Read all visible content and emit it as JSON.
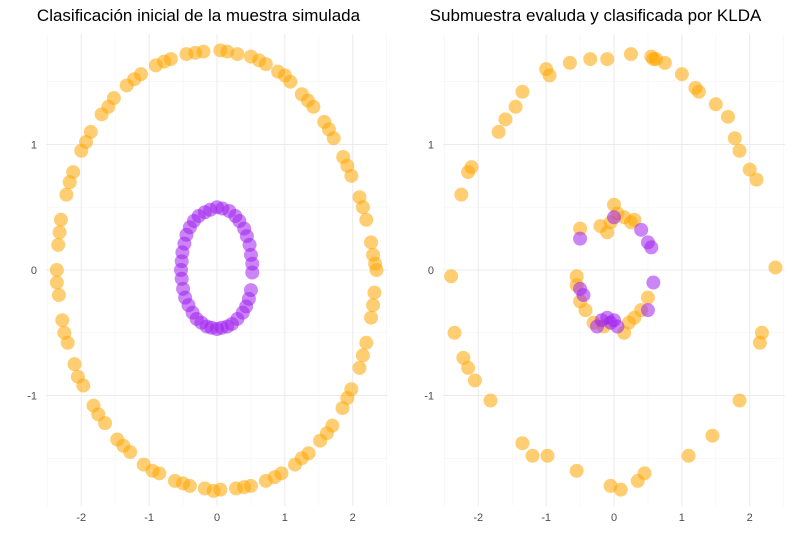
{
  "chart_data": [
    {
      "type": "scatter",
      "title": "Clasificación inicial de la muestra simulada",
      "xlabel": "",
      "ylabel": "",
      "xlim": [
        -2.52,
        2.52
      ],
      "ylim": [
        -1.88,
        1.88
      ],
      "xticks": [
        "-2",
        "-1",
        "0",
        "1",
        "2"
      ],
      "yticks": [
        "-1",
        "0",
        "1"
      ],
      "grid": true,
      "series": [
        {
          "color": "#FFA500",
          "points": [
            [
              0.05,
              1.75
            ],
            [
              0.3,
              1.72
            ],
            [
              0.5,
              1.7
            ],
            [
              0.72,
              1.64
            ],
            [
              0.9,
              1.58
            ],
            [
              1.08,
              1.5
            ],
            [
              1.25,
              1.4
            ],
            [
              1.42,
              1.3
            ],
            [
              1.58,
              1.18
            ],
            [
              1.72,
              1.05
            ],
            [
              1.86,
              0.9
            ],
            [
              1.98,
              0.75
            ],
            [
              2.1,
              0.58
            ],
            [
              2.2,
              0.4
            ],
            [
              2.27,
              0.22
            ],
            [
              2.33,
              0.05
            ],
            [
              2.35,
              0.0
            ],
            [
              2.32,
              -0.18
            ],
            [
              2.27,
              -0.38
            ],
            [
              2.2,
              -0.58
            ],
            [
              2.1,
              -0.78
            ],
            [
              1.98,
              -0.95
            ],
            [
              1.85,
              -1.1
            ],
            [
              1.7,
              -1.24
            ],
            [
              1.52,
              -1.36
            ],
            [
              1.35,
              -1.46
            ],
            [
              1.15,
              -1.55
            ],
            [
              0.95,
              -1.62
            ],
            [
              0.72,
              -1.68
            ],
            [
              0.5,
              -1.72
            ],
            [
              0.28,
              -1.74
            ],
            [
              0.05,
              -1.75
            ],
            [
              -0.18,
              -1.74
            ],
            [
              -0.4,
              -1.72
            ],
            [
              -0.62,
              -1.68
            ],
            [
              -0.85,
              -1.62
            ],
            [
              -1.08,
              -1.55
            ],
            [
              -1.28,
              -1.45
            ],
            [
              -1.47,
              -1.35
            ],
            [
              -1.65,
              -1.22
            ],
            [
              -1.82,
              -1.08
            ],
            [
              -1.97,
              -0.92
            ],
            [
              -2.1,
              -0.75
            ],
            [
              -2.2,
              -0.58
            ],
            [
              -2.28,
              -0.4
            ],
            [
              -2.33,
              -0.2
            ],
            [
              -2.36,
              0.0
            ],
            [
              -2.34,
              0.2
            ],
            [
              -2.3,
              0.4
            ],
            [
              -2.22,
              0.6
            ],
            [
              -2.12,
              0.78
            ],
            [
              -2.0,
              0.95
            ],
            [
              -1.86,
              1.1
            ],
            [
              -1.7,
              1.24
            ],
            [
              -1.52,
              1.37
            ],
            [
              -1.33,
              1.47
            ],
            [
              -1.12,
              1.56
            ],
            [
              -0.9,
              1.63
            ],
            [
              -0.68,
              1.68
            ],
            [
              -0.45,
              1.72
            ],
            [
              -0.2,
              1.74
            ],
            [
              0.15,
              1.74
            ],
            [
              0.62,
              1.67
            ],
            [
              1.0,
              1.55
            ],
            [
              1.34,
              1.35
            ],
            [
              1.65,
              1.12
            ],
            [
              1.92,
              0.83
            ],
            [
              2.15,
              0.5
            ],
            [
              2.3,
              0.12
            ],
            [
              2.3,
              -0.28
            ],
            [
              2.15,
              -0.68
            ],
            [
              1.92,
              -1.02
            ],
            [
              1.62,
              -1.3
            ],
            [
              1.25,
              -1.5
            ],
            [
              0.85,
              -1.65
            ],
            [
              0.4,
              -1.73
            ],
            [
              -0.05,
              -1.76
            ],
            [
              -0.5,
              -1.7
            ],
            [
              -0.95,
              -1.6
            ],
            [
              -1.38,
              -1.4
            ],
            [
              -1.75,
              -1.15
            ],
            [
              -2.05,
              -0.85
            ],
            [
              -2.25,
              -0.5
            ],
            [
              -2.36,
              -0.1
            ],
            [
              -2.32,
              0.3
            ],
            [
              -2.17,
              0.7
            ],
            [
              -1.93,
              1.02
            ],
            [
              -1.6,
              1.3
            ],
            [
              -1.22,
              1.52
            ],
            [
              -0.78,
              1.66
            ],
            [
              -0.32,
              1.73
            ]
          ]
        },
        {
          "color": "#A020F0",
          "points": [
            [
              0.0,
              0.5
            ],
            [
              0.18,
              0.47
            ],
            [
              0.33,
              0.39
            ],
            [
              0.44,
              0.27
            ],
            [
              0.5,
              0.12
            ],
            [
              0.52,
              -0.02
            ],
            [
              0.5,
              -0.16
            ],
            [
              0.43,
              -0.29
            ],
            [
              0.3,
              -0.39
            ],
            [
              0.15,
              -0.45
            ],
            [
              0.0,
              -0.47
            ],
            [
              -0.15,
              -0.45
            ],
            [
              -0.3,
              -0.39
            ],
            [
              -0.42,
              -0.28
            ],
            [
              -0.5,
              -0.15
            ],
            [
              -0.53,
              0.0
            ],
            [
              -0.51,
              0.14
            ],
            [
              -0.45,
              0.28
            ],
            [
              -0.34,
              0.39
            ],
            [
              -0.18,
              0.46
            ],
            [
              0.08,
              0.49
            ],
            [
              0.27,
              0.43
            ],
            [
              0.4,
              0.33
            ],
            [
              0.48,
              0.2
            ],
            [
              0.52,
              0.05
            ],
            [
              0.47,
              -0.23
            ],
            [
              0.38,
              -0.34
            ],
            [
              0.22,
              -0.43
            ],
            [
              0.07,
              -0.46
            ],
            [
              -0.08,
              -0.46
            ],
            [
              -0.23,
              -0.42
            ],
            [
              -0.36,
              -0.34
            ],
            [
              -0.47,
              -0.22
            ],
            [
              -0.52,
              -0.07
            ],
            [
              -0.52,
              0.07
            ],
            [
              -0.48,
              0.21
            ],
            [
              -0.4,
              0.34
            ],
            [
              -0.27,
              0.43
            ],
            [
              -0.1,
              0.48
            ]
          ]
        }
      ]
    },
    {
      "type": "scatter",
      "title": "Submuestra evaluda y clasificada por KLDA",
      "xlabel": "",
      "ylabel": "",
      "xlim": [
        -2.52,
        2.52
      ],
      "ylim": [
        -1.88,
        1.88
      ],
      "xticks": [
        "-2",
        "-1",
        "0",
        "1",
        "2"
      ],
      "yticks": [
        "-1",
        "0",
        "1"
      ],
      "grid": true,
      "series": [
        {
          "color": "#FFA500",
          "points": [
            [
              -0.1,
              1.68
            ],
            [
              0.25,
              1.72
            ],
            [
              0.55,
              1.7
            ],
            [
              0.62,
              1.68
            ],
            [
              1.0,
              1.56
            ],
            [
              1.2,
              1.45
            ],
            [
              1.25,
              1.42
            ],
            [
              1.5,
              1.32
            ],
            [
              1.68,
              1.22
            ],
            [
              1.78,
              1.05
            ],
            [
              1.85,
              0.95
            ],
            [
              2.0,
              0.8
            ],
            [
              2.1,
              0.72
            ],
            [
              2.38,
              0.02
            ],
            [
              2.18,
              -0.5
            ],
            [
              2.15,
              -0.58
            ],
            [
              1.85,
              -1.04
            ],
            [
              1.45,
              -1.32
            ],
            [
              1.1,
              -1.48
            ],
            [
              0.45,
              -1.62
            ],
            [
              0.35,
              -1.68
            ],
            [
              0.1,
              -1.75
            ],
            [
              -0.05,
              -1.72
            ],
            [
              -0.55,
              -1.6
            ],
            [
              -0.98,
              -1.48
            ],
            [
              -1.2,
              -1.48
            ],
            [
              -1.35,
              -1.38
            ],
            [
              -1.82,
              -1.04
            ],
            [
              -2.05,
              -0.88
            ],
            [
              -2.15,
              -0.78
            ],
            [
              -2.22,
              -0.7
            ],
            [
              -2.35,
              -0.5
            ],
            [
              -2.4,
              -0.05
            ],
            [
              -2.25,
              0.6
            ],
            [
              -2.15,
              0.78
            ],
            [
              -2.1,
              0.82
            ],
            [
              -1.7,
              1.1
            ],
            [
              -1.6,
              1.2
            ],
            [
              -1.45,
              1.3
            ],
            [
              -1.35,
              1.42
            ],
            [
              -1.0,
              1.6
            ],
            [
              -0.95,
              1.55
            ],
            [
              -0.65,
              1.65
            ],
            [
              -0.35,
              1.68
            ],
            [
              0.58,
              1.68
            ],
            [
              0.75,
              1.65
            ],
            [
              0.0,
              0.52
            ],
            [
              0.15,
              0.42
            ],
            [
              0.25,
              0.38
            ],
            [
              -0.05,
              0.38
            ],
            [
              -0.2,
              0.35
            ],
            [
              -0.1,
              0.3
            ],
            [
              0.05,
              0.45
            ],
            [
              0.3,
              0.4
            ],
            [
              -0.5,
              0.33
            ],
            [
              -0.55,
              -0.05
            ],
            [
              -0.55,
              -0.12
            ],
            [
              -0.5,
              -0.25
            ],
            [
              -0.42,
              -0.32
            ],
            [
              0.15,
              -0.5
            ],
            [
              0.22,
              -0.42
            ],
            [
              0.3,
              -0.38
            ],
            [
              0.4,
              -0.32
            ],
            [
              0.5,
              -0.22
            ],
            [
              -0.3,
              -0.42
            ],
            [
              -0.15,
              -0.45
            ]
          ]
        },
        {
          "color": "#A020F0",
          "points": [
            [
              -0.5,
              0.25
            ],
            [
              0.0,
              0.42
            ],
            [
              0.4,
              0.32
            ],
            [
              0.5,
              0.22
            ],
            [
              0.55,
              0.18
            ],
            [
              -0.5,
              -0.15
            ],
            [
              -0.45,
              -0.2
            ],
            [
              0.58,
              -0.1
            ],
            [
              0.5,
              -0.32
            ],
            [
              -0.1,
              -0.38
            ],
            [
              -0.05,
              -0.42
            ],
            [
              0.05,
              -0.45
            ],
            [
              -0.25,
              -0.45
            ],
            [
              0.0,
              -0.4
            ],
            [
              -0.18,
              -0.4
            ]
          ]
        }
      ]
    }
  ],
  "colors": {
    "class_a": "#FFA500",
    "class_b": "#A020F0",
    "grid": "#ebebeb",
    "tick_text": "#4d4d4d"
  }
}
